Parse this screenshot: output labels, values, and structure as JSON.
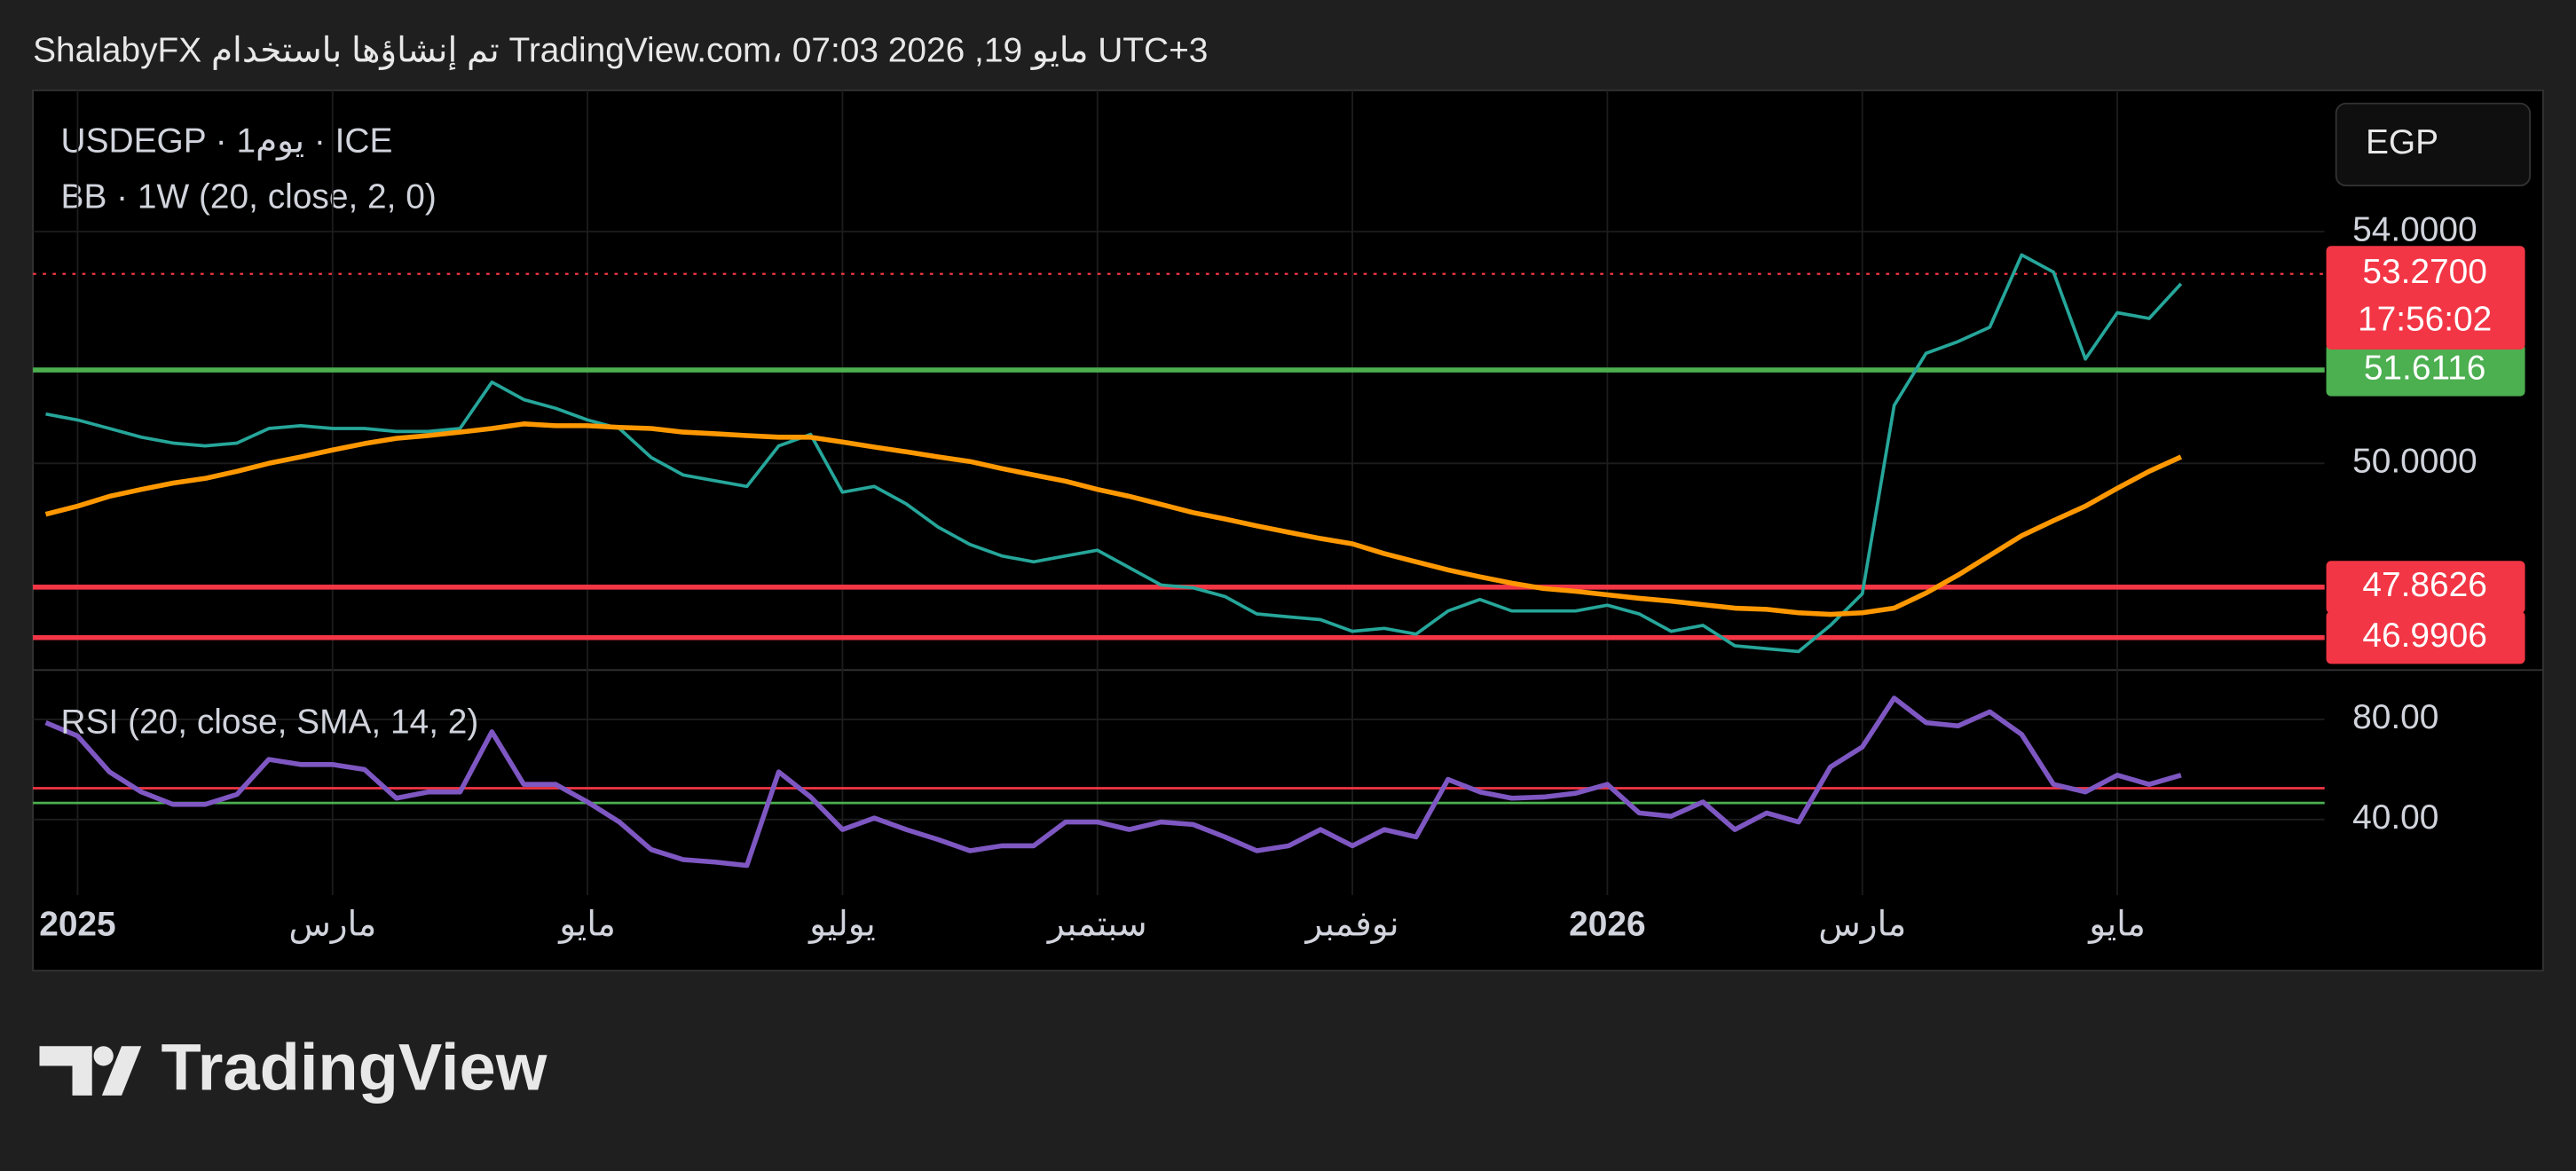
{
  "header": "ShalabyFX تم إنشاؤها باستخدام TradingView.com، 07:03 2026 ,19 مايو UTC+3",
  "logo": "TradingView",
  "currency": "EGP",
  "chart_data": [
    {
      "type": "line",
      "title": "USDEGP · 1يوم · ICE",
      "subtitle": "BB · 1W (20, close, 2, 0)",
      "categories": [
        null,
        "2025",
        null,
        null,
        null,
        null,
        null,
        null,
        null,
        "مارس",
        null,
        null,
        null,
        null,
        null,
        null,
        null,
        "مايو",
        null,
        null,
        null,
        null,
        null,
        null,
        null,
        "يوليو",
        null,
        null,
        null,
        null,
        null,
        null,
        null,
        "سبتمبر",
        null,
        null,
        null,
        null,
        null,
        null,
        null,
        "نوفمبر",
        null,
        null,
        null,
        null,
        null,
        null,
        null,
        "2026",
        null,
        null,
        null,
        null,
        null,
        null,
        null,
        "مارس",
        null,
        null,
        null,
        null,
        null,
        null,
        null,
        "مايو",
        null,
        null
      ],
      "series": [
        {
          "color": "#26a69a",
          "values": [
            50.85,
            50.75,
            50.6,
            50.45,
            50.35,
            50.3,
            50.35,
            50.6,
            50.65,
            50.6,
            50.6,
            50.55,
            50.55,
            50.6,
            51.4,
            51.1,
            50.95,
            50.75,
            50.6,
            50.1,
            49.8,
            49.7,
            49.6,
            50.3,
            50.5,
            49.5,
            49.6,
            49.3,
            48.9,
            48.6,
            48.4,
            48.3,
            48.4,
            48.5,
            48.2,
            47.9,
            47.85,
            47.7,
            47.4,
            47.35,
            47.3,
            47.1,
            47.15,
            47.05,
            47.45,
            47.65,
            47.45,
            47.45,
            47.45,
            47.55,
            47.4,
            47.1,
            47.2,
            46.85,
            46.8,
            46.75,
            47.2,
            47.75,
            51.0,
            51.9,
            52.1,
            52.35,
            53.6,
            53.3,
            51.8,
            52.6,
            52.5,
            53.1
          ]
        },
        {
          "color": "#ff9800",
          "values": [
            49.12,
            49.26,
            49.43,
            49.55,
            49.66,
            49.74,
            49.86,
            50.0,
            50.11,
            50.23,
            50.34,
            50.43,
            50.48,
            50.54,
            50.6,
            50.68,
            50.65,
            50.65,
            50.62,
            50.6,
            50.54,
            50.51,
            50.48,
            50.45,
            50.45,
            50.37,
            50.28,
            50.2,
            50.11,
            50.03,
            49.91,
            49.8,
            49.69,
            49.55,
            49.43,
            49.29,
            49.15,
            49.04,
            48.92,
            48.81,
            48.7,
            48.61,
            48.44,
            48.3,
            48.16,
            48.04,
            47.93,
            47.84,
            47.79,
            47.73,
            47.67,
            47.62,
            47.56,
            47.5,
            47.48,
            47.42,
            47.39,
            47.42,
            47.5,
            47.76,
            48.07,
            48.41,
            48.75,
            49.01,
            49.26,
            49.57,
            49.86,
            50.11
          ]
        }
      ],
      "ylim": [
        46.43,
        56.44
      ],
      "yticks": [
        {
          "value": 50,
          "label": "50.0000"
        },
        {
          "value": 54,
          "label": "54.0000"
        }
      ],
      "hlines": [
        {
          "value": 51.6116,
          "color": "#4caf50"
        },
        {
          "value": 47.8626,
          "color": "#f23645"
        },
        {
          "value": 46.9906,
          "color": "#f23645"
        }
      ],
      "last_price": {
        "value": 53.27,
        "label": "53.2700",
        "countdown": "17:56:02",
        "color": "#f23645"
      },
      "grid": true
    },
    {
      "type": "line",
      "title": "RSI (20, close, SMA, 14, 2)",
      "series": [
        {
          "color": "#7e57c2",
          "values": [
            78.7,
            73.4,
            59,
            51,
            46,
            46,
            50,
            64,
            62,
            62,
            60,
            48.5,
            51,
            51,
            75,
            54,
            54,
            47,
            39,
            28,
            24,
            23,
            21.6,
            59,
            49,
            36,
            40.6,
            36,
            32,
            27.5,
            29.5,
            29.5,
            39,
            39,
            36,
            39,
            38,
            33,
            27.5,
            29.5,
            36,
            29.5,
            36,
            33,
            56,
            51,
            48.5,
            49,
            50.5,
            54,
            42.6,
            41.3,
            47,
            36,
            42.6,
            39,
            61,
            69,
            88.5,
            78.7,
            77.4,
            83,
            74,
            54,
            51,
            57.7,
            54,
            57.7
          ]
        }
      ],
      "ylim": [
        9.8,
        99.7
      ],
      "yticks": [
        {
          "value": 40,
          "label": "40.00"
        },
        {
          "value": 80,
          "label": "80.00"
        }
      ],
      "hlines": [
        {
          "value": 52.5,
          "color": "#f23645"
        },
        {
          "value": 46.6,
          "color": "#4caf50"
        }
      ],
      "grid": true
    }
  ]
}
